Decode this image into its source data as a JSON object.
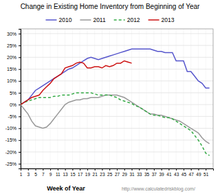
{
  "chart_data": {
    "type": "line",
    "title": "Change in Existing Home Inventory from Beginning of Year",
    "x_label": "Week of Year",
    "annotations": [
      "http://www.calculatedriskblog.com/"
    ],
    "x": [
      1,
      2,
      3,
      4,
      5,
      6,
      7,
      8,
      9,
      10,
      11,
      12,
      13,
      14,
      15,
      16,
      17,
      18,
      19,
      20,
      21,
      22,
      23,
      24,
      25,
      26,
      27,
      28,
      29,
      30,
      31,
      32,
      33,
      34,
      35,
      36,
      37,
      38,
      39,
      40,
      41,
      42,
      43,
      44,
      45,
      46,
      47,
      48,
      49,
      50,
      51,
      52
    ],
    "series": [
      {
        "name": "2010",
        "color": "#5555cc",
        "line_style": "solid",
        "values": [
          0.0,
          0.01,
          0.02,
          0.04,
          0.06,
          0.07,
          0.08,
          0.09,
          0.1,
          0.11,
          0.12,
          0.13,
          0.14,
          0.15,
          0.155,
          0.165,
          0.175,
          0.185,
          0.195,
          0.2,
          0.195,
          0.19,
          0.195,
          0.2,
          0.205,
          0.21,
          0.215,
          0.22,
          0.225,
          0.23,
          0.235,
          0.235,
          0.235,
          0.235,
          0.235,
          0.235,
          0.23,
          0.225,
          0.225,
          0.22,
          0.22,
          0.22,
          0.185,
          0.185,
          0.185,
          0.14,
          0.14,
          0.12,
          0.1,
          0.09,
          0.07,
          0.07
        ]
      },
      {
        "name": "2011",
        "color": "#999999",
        "line_style": "solid",
        "values": [
          0.0,
          -0.02,
          -0.04,
          -0.07,
          -0.09,
          -0.095,
          -0.1,
          -0.095,
          -0.08,
          -0.06,
          -0.04,
          -0.02,
          0.0,
          0.01,
          0.015,
          0.02,
          0.02,
          0.025,
          0.025,
          0.03,
          0.03,
          0.03,
          0.035,
          0.04,
          0.04,
          0.04,
          0.04,
          0.035,
          0.03,
          0.02,
          0.01,
          0.0,
          -0.01,
          -0.02,
          -0.03,
          -0.04,
          -0.04,
          -0.045,
          -0.045,
          -0.05,
          -0.055,
          -0.06,
          -0.065,
          -0.07,
          -0.08,
          -0.09,
          -0.1,
          -0.11,
          -0.12,
          -0.14,
          -0.155,
          -0.165
        ]
      },
      {
        "name": "2012",
        "color": "#33aa44",
        "line_style": "dashed",
        "values": [
          0.0,
          0.01,
          0.015,
          0.02,
          0.025,
          0.03,
          0.03,
          0.03,
          0.03,
          0.035,
          0.035,
          0.04,
          0.04,
          0.04,
          0.045,
          0.05,
          0.05,
          0.05,
          0.05,
          0.05,
          0.045,
          0.04,
          0.04,
          0.04,
          0.04,
          0.035,
          0.03,
          0.02,
          0.015,
          0.01,
          0.005,
          -0.005,
          -0.01,
          -0.02,
          -0.03,
          -0.04,
          -0.045,
          -0.045,
          -0.05,
          -0.055,
          -0.055,
          -0.06,
          -0.07,
          -0.08,
          -0.09,
          -0.1,
          -0.11,
          -0.13,
          -0.15,
          -0.175,
          -0.205,
          -0.215
        ]
      },
      {
        "name": "2013",
        "color": "#cc1111",
        "line_style": "solid",
        "values": [
          0.0,
          0.01,
          0.02,
          0.03,
          0.035,
          0.04,
          0.06,
          0.075,
          0.09,
          0.11,
          0.12,
          0.13,
          0.155,
          0.16,
          0.165,
          0.175,
          0.18,
          0.175,
          0.155,
          0.155,
          0.16,
          0.16,
          0.155,
          0.165,
          0.16,
          0.165,
          0.175,
          0.175,
          0.185,
          0.18,
          0.175,
          null,
          null,
          null,
          null,
          null,
          null,
          null,
          null,
          null,
          null,
          null,
          null,
          null,
          null,
          null,
          null,
          null,
          null,
          null,
          null,
          null
        ]
      }
    ],
    "xlim": [
      1,
      53
    ],
    "xticks": [
      1,
      3,
      5,
      7,
      9,
      11,
      13,
      15,
      17,
      19,
      21,
      23,
      25,
      27,
      29,
      31,
      33,
      35,
      37,
      39,
      41,
      43,
      45,
      47,
      49,
      51
    ],
    "ylim": [
      -0.27,
      0.32
    ],
    "yticks": [
      {
        "value": -0.25,
        "label": "-25%"
      },
      {
        "value": -0.2,
        "label": "-20%"
      },
      {
        "value": -0.15,
        "label": "-15%"
      },
      {
        "value": -0.1,
        "label": "-10%"
      },
      {
        "value": -0.05,
        "label": "-5%"
      },
      {
        "value": 0.0,
        "label": "0%"
      },
      {
        "value": 0.05,
        "label": "5%"
      },
      {
        "value": 0.1,
        "label": "10%"
      },
      {
        "value": 0.15,
        "label": "15%"
      },
      {
        "value": 0.2,
        "label": "20%"
      },
      {
        "value": 0.25,
        "label": "25%"
      },
      {
        "value": 0.3,
        "label": "30%"
      }
    ],
    "grid": true,
    "legend": "top"
  }
}
